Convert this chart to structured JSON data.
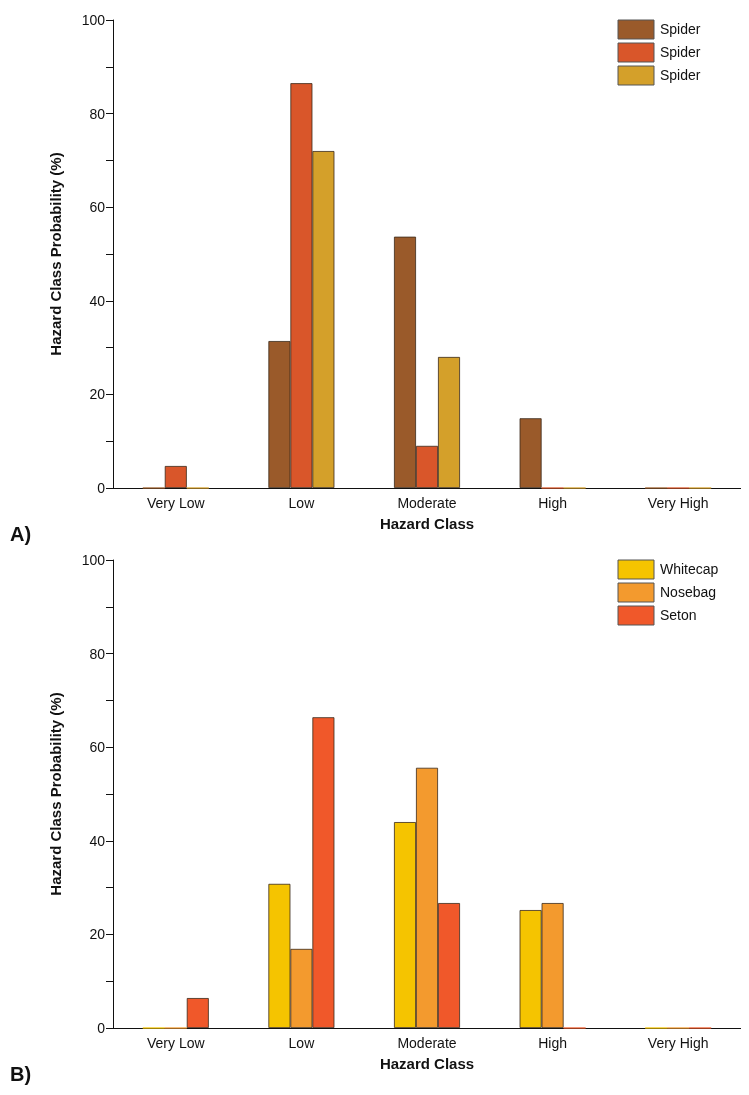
{
  "chart_data": [
    {
      "type": "bar",
      "xlabel": "Hazard Class",
      "ylabel": "Hazard Class Probability (%)",
      "annotations": [
        "A)"
      ],
      "categories": [
        "Very Low",
        "Low",
        "Moderate",
        "High",
        "Very High"
      ],
      "series": [
        {
          "name": "Spider",
          "color": "#9a5a2a",
          "values": [
            0,
            31.4,
            53.7,
            14.9,
            0
          ]
        },
        {
          "name": "Spider",
          "color": "#d9562a",
          "values": [
            4.7,
            86.5,
            9,
            0,
            0
          ]
        },
        {
          "name": "Spider",
          "color": "#d4a02a",
          "values": [
            0,
            72,
            28,
            0,
            0
          ]
        }
      ],
      "ylim": [
        0,
        100
      ],
      "yticks": [
        0,
        {
          "value": 10,
          "label": null
        },
        20,
        {
          "value": 30,
          "label": null
        },
        40,
        {
          "value": 50,
          "label": null
        },
        60,
        {
          "value": 70,
          "label": null
        },
        80,
        {
          "value": 90,
          "label": null
        },
        100
      ],
      "grid": false,
      "legend": "top right"
    },
    {
      "type": "bar",
      "xlabel": "Hazard Class",
      "ylabel": "Hazard Class Probability (%)",
      "annotations": [
        "B)"
      ],
      "categories": [
        "Very Low",
        "Low",
        "Moderate",
        "High",
        "Very High"
      ],
      "series": [
        {
          "name": "Whitecap",
          "color": "#f5c400",
          "values": [
            0,
            30.8,
            44,
            25.2,
            0
          ]
        },
        {
          "name": "Nosebag",
          "color": "#f39a2e",
          "values": [
            0,
            16.9,
            55.6,
            26.7,
            0
          ]
        },
        {
          "name": "Seton",
          "color": "#f0582a",
          "values": [
            6.4,
            66.4,
            26.7,
            0,
            0
          ]
        }
      ],
      "ylim": [
        0,
        100
      ],
      "yticks": [
        0,
        {
          "value": 10,
          "label": null
        },
        20,
        {
          "value": 30,
          "label": null
        },
        40,
        {
          "value": 50,
          "label": null
        },
        60,
        {
          "value": 70,
          "label": null
        },
        80,
        {
          "value": 90,
          "label": null
        },
        100
      ],
      "grid": false,
      "legend": "top right"
    }
  ]
}
